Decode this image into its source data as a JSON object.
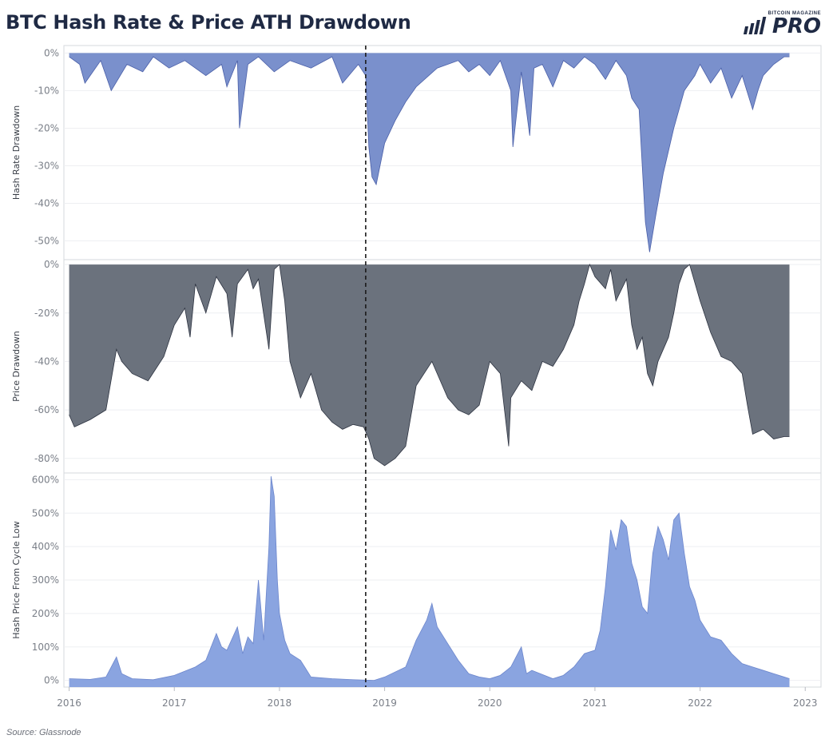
{
  "title": "BTC Hash Rate & Price ATH Drawdown",
  "logo": {
    "top": "BITCOIN MAGAZINE",
    "main": "PRO"
  },
  "source": "Source: Glassnode",
  "colors": {
    "hash": "#7a90cc",
    "hash_line": "#4a5fa8",
    "price": "#6b727d",
    "price_line": "#2c3240",
    "hashprice": "#8aa4e0",
    "hashprice_line": "#6c86cc"
  },
  "chart_data": [
    {
      "type": "area",
      "panel": "hash",
      "ylabel": "Hash Rate Drawdown",
      "ylim": [
        -55,
        2
      ],
      "yticks": [
        0,
        -10,
        -20,
        -30,
        -40,
        -50
      ],
      "ytick_labels": [
        "0%",
        "-10%",
        "-20%",
        "-30%",
        "-40%",
        "-50%"
      ],
      "series": [
        {
          "name": "Hash Rate Drawdown",
          "x": [
            2016.0,
            2016.1,
            2016.15,
            2016.3,
            2016.4,
            2016.55,
            2016.7,
            2016.8,
            2016.95,
            2017.1,
            2017.3,
            2017.45,
            2017.5,
            2017.6,
            2017.62,
            2017.7,
            2017.8,
            2017.95,
            2018.1,
            2018.3,
            2018.5,
            2018.6,
            2018.75,
            2018.82,
            2018.85,
            2018.88,
            2018.92,
            2019.0,
            2019.1,
            2019.2,
            2019.3,
            2019.5,
            2019.7,
            2019.8,
            2019.9,
            2020.0,
            2020.1,
            2020.2,
            2020.22,
            2020.3,
            2020.38,
            2020.42,
            2020.5,
            2020.6,
            2020.7,
            2020.8,
            2020.9,
            2021.0,
            2021.1,
            2021.2,
            2021.3,
            2021.35,
            2021.42,
            2021.45,
            2021.48,
            2021.52,
            2021.58,
            2021.65,
            2021.75,
            2021.85,
            2021.95,
            2022.0,
            2022.1,
            2022.2,
            2022.3,
            2022.4,
            2022.5,
            2022.55,
            2022.6,
            2022.7,
            2022.8,
            2022.85
          ],
          "values": [
            -1,
            -3,
            -8,
            -2,
            -10,
            -3,
            -5,
            -1,
            -4,
            -2,
            -6,
            -3,
            -9,
            -2,
            -20,
            -3,
            -1,
            -5,
            -2,
            -4,
            -1,
            -8,
            -3,
            -6,
            -25,
            -33,
            -35,
            -24,
            -18,
            -13,
            -9,
            -4,
            -2,
            -5,
            -3,
            -6,
            -2,
            -10,
            -25,
            -5,
            -22,
            -4,
            -3,
            -9,
            -2,
            -4,
            -1,
            -3,
            -7,
            -2,
            -6,
            -12,
            -15,
            -30,
            -45,
            -53,
            -43,
            -32,
            -20,
            -10,
            -6,
            -3,
            -8,
            -4,
            -12,
            -6,
            -15,
            -10,
            -6,
            -3,
            -1,
            -1
          ]
        }
      ]
    },
    {
      "type": "area",
      "panel": "price",
      "ylabel": "Price Drawdown",
      "ylim": [
        -86,
        2
      ],
      "yticks": [
        0,
        -20,
        -40,
        -60,
        -80
      ],
      "ytick_labels": [
        "0%",
        "-20%",
        "-40%",
        "-60%",
        "-80%"
      ],
      "series": [
        {
          "name": "Price Drawdown",
          "x": [
            2016.0,
            2016.05,
            2016.2,
            2016.35,
            2016.45,
            2016.5,
            2016.6,
            2016.75,
            2016.9,
            2017.0,
            2017.1,
            2017.15,
            2017.2,
            2017.3,
            2017.4,
            2017.5,
            2017.55,
            2017.6,
            2017.7,
            2017.75,
            2017.8,
            2017.9,
            2017.95,
            2018.0,
            2018.05,
            2018.1,
            2018.2,
            2018.3,
            2018.4,
            2018.5,
            2018.6,
            2018.7,
            2018.8,
            2018.85,
            2018.9,
            2019.0,
            2019.1,
            2019.2,
            2019.3,
            2019.45,
            2019.5,
            2019.6,
            2019.7,
            2019.8,
            2019.9,
            2020.0,
            2020.1,
            2020.18,
            2020.2,
            2020.3,
            2020.4,
            2020.5,
            2020.6,
            2020.7,
            2020.8,
            2020.85,
            2020.9,
            2020.95,
            2021.0,
            2021.1,
            2021.15,
            2021.2,
            2021.3,
            2021.35,
            2021.4,
            2021.45,
            2021.5,
            2021.55,
            2021.6,
            2021.7,
            2021.75,
            2021.8,
            2021.85,
            2021.9,
            2022.0,
            2022.1,
            2022.2,
            2022.3,
            2022.4,
            2022.45,
            2022.5,
            2022.6,
            2022.7,
            2022.8,
            2022.85
          ],
          "values": [
            -62,
            -67,
            -64,
            -60,
            -35,
            -40,
            -45,
            -48,
            -38,
            -25,
            -18,
            -30,
            -8,
            -20,
            -5,
            -12,
            -30,
            -8,
            -2,
            -10,
            -6,
            -35,
            -2,
            0,
            -15,
            -40,
            -55,
            -45,
            -60,
            -65,
            -68,
            -66,
            -67,
            -72,
            -80,
            -83,
            -80,
            -75,
            -50,
            -40,
            -45,
            -55,
            -60,
            -62,
            -58,
            -40,
            -45,
            -75,
            -55,
            -48,
            -52,
            -40,
            -42,
            -35,
            -25,
            -15,
            -8,
            0,
            -5,
            -10,
            -2,
            -15,
            -6,
            -25,
            -35,
            -30,
            -45,
            -50,
            -40,
            -30,
            -20,
            -8,
            -2,
            0,
            -15,
            -28,
            -38,
            -40,
            -45,
            -58,
            -70,
            -68,
            -72,
            -71,
            -71
          ]
        }
      ]
    },
    {
      "type": "area",
      "panel": "hashprice",
      "ylabel": "Hash Price From Cycle Low",
      "ylim": [
        -20,
        620
      ],
      "yticks": [
        0,
        100,
        200,
        300,
        400,
        500,
        600
      ],
      "ytick_labels": [
        "0%",
        "100%",
        "200%",
        "300%",
        "400%",
        "500%",
        "600%"
      ],
      "series": [
        {
          "name": "Hash Price From Cycle Low",
          "x": [
            2016.0,
            2016.2,
            2016.35,
            2016.45,
            2016.5,
            2016.6,
            2016.8,
            2017.0,
            2017.2,
            2017.3,
            2017.4,
            2017.45,
            2017.5,
            2017.6,
            2017.65,
            2017.7,
            2017.75,
            2017.8,
            2017.85,
            2017.9,
            2017.92,
            2017.95,
            2017.98,
            2018.0,
            2018.05,
            2018.1,
            2018.2,
            2018.3,
            2018.5,
            2018.7,
            2018.9,
            2019.0,
            2019.2,
            2019.3,
            2019.4,
            2019.45,
            2019.5,
            2019.6,
            2019.7,
            2019.8,
            2019.9,
            2020.0,
            2020.1,
            2020.2,
            2020.3,
            2020.35,
            2020.4,
            2020.6,
            2020.7,
            2020.8,
            2020.9,
            2021.0,
            2021.05,
            2021.1,
            2021.15,
            2021.2,
            2021.25,
            2021.3,
            2021.35,
            2021.4,
            2021.45,
            2021.5,
            2021.55,
            2021.6,
            2021.65,
            2021.7,
            2021.75,
            2021.8,
            2021.85,
            2021.9,
            2021.95,
            2022.0,
            2022.1,
            2022.2,
            2022.3,
            2022.4,
            2022.5,
            2022.6,
            2022.7,
            2022.8,
            2022.85
          ],
          "values": [
            5,
            3,
            10,
            70,
            20,
            5,
            2,
            15,
            40,
            60,
            140,
            100,
            90,
            160,
            80,
            130,
            110,
            300,
            120,
            400,
            610,
            550,
            300,
            200,
            120,
            80,
            60,
            10,
            5,
            2,
            0,
            10,
            40,
            120,
            180,
            230,
            160,
            110,
            60,
            20,
            10,
            5,
            15,
            40,
            100,
            20,
            30,
            5,
            15,
            40,
            80,
            90,
            150,
            280,
            450,
            390,
            480,
            460,
            350,
            300,
            220,
            200,
            380,
            460,
            420,
            360,
            480,
            500,
            380,
            280,
            240,
            180,
            130,
            120,
            80,
            50,
            40,
            30,
            20,
            10,
            5
          ]
        }
      ]
    }
  ],
  "x_axis": {
    "range": [
      2015.95,
      2023.15
    ],
    "ticks": [
      2016,
      2017,
      2018,
      2019,
      2020,
      2021,
      2022,
      2023
    ],
    "tick_labels": [
      "2016",
      "2017",
      "2018",
      "2019",
      "2020",
      "2021",
      "2022",
      "2023"
    ]
  },
  "marker_x": 2018.82
}
